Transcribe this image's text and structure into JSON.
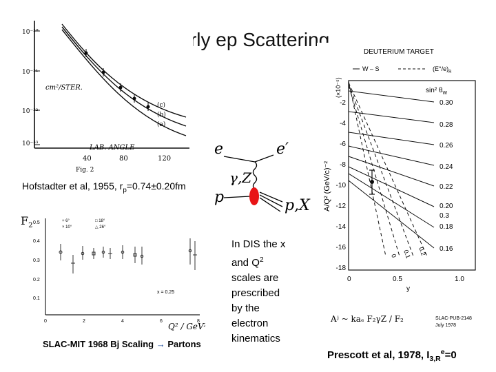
{
  "slide": {
    "title": "Early ep Scattering"
  },
  "hofstadter": {
    "y_ticks": [
      "10⁻³°",
      "10⁻³¹",
      "10⁻³²",
      "10⁻³³"
    ],
    "y_unit": "cm²/STER.",
    "x_ticks": [
      "40",
      "80",
      "120"
    ],
    "x_label": "LAB. ANGLE",
    "fig_label": "Fig. 2",
    "curve_labels": [
      "(c)",
      "(b)",
      "(a)"
    ],
    "caption_prefix": "Hofstadter et al, 1955, r",
    "caption_sub": "p",
    "caption_suffix": "=0.74±0.20fm"
  },
  "feynman": {
    "e_in": "e",
    "e_out": "e′",
    "boson": "γ,Z",
    "p_in": "p",
    "p_out": "p,X"
  },
  "slac": {
    "y_label": "F",
    "y_label_sub": "2",
    "y_ticks": [
      "0.5",
      "0.4",
      "0.3",
      "0.2",
      "0.1"
    ],
    "x_ticks": [
      "0",
      "2",
      "4",
      "6",
      "8"
    ],
    "legend": [
      "6°",
      "18°",
      "10°",
      "26°"
    ],
    "x_value_note": "x = 0.25",
    "x_axis_label": "Q² / GeV²",
    "caption_prefix": "SLAC-MIT 1968  Bj Scaling",
    "caption_arrow": "→",
    "caption_suffix": "Partons"
  },
  "dis_note": {
    "text_1": "In DIS the x and Q",
    "sup": "2",
    "text_2": " scales are prescribed by the electron kinematics"
  },
  "prescott": {
    "header": "DEUTERIUM TARGET",
    "legend_ws": "W – S",
    "legend_ratio": "(E°/e)",
    "legend_ratio_sub": "R",
    "sin_label": "sin² θ",
    "sin_label_sub": "W",
    "y_axis_label": "A/Q² (GeV/c)⁻²",
    "y_unit": "(×10⁻⁵)",
    "y_ticks": [
      "-2",
      "-4",
      "-6",
      "-8",
      "-10",
      "-12",
      "-14",
      "-16",
      "-18"
    ],
    "x_ticks": [
      "0",
      "0.5",
      "1.0"
    ],
    "x_label": "y",
    "right_values": [
      "0.30",
      "0.28",
      "0.26",
      "0.24",
      "0.22",
      "0.20",
      "0.3",
      "0.18",
      "0.16"
    ],
    "dashed_labels": [
      "0",
      "0.1",
      "0.2"
    ],
    "formula": "Aʲ ~ kaₑ F₂γZ / F₂",
    "footnote_1": "SLAC-PUB-2148",
    "footnote_2": "July 1978",
    "caption_prefix": "Prescott et al, 1978, I",
    "caption_sub": "3,R",
    "caption_sup": "e",
    "caption_suffix": "=0"
  }
}
